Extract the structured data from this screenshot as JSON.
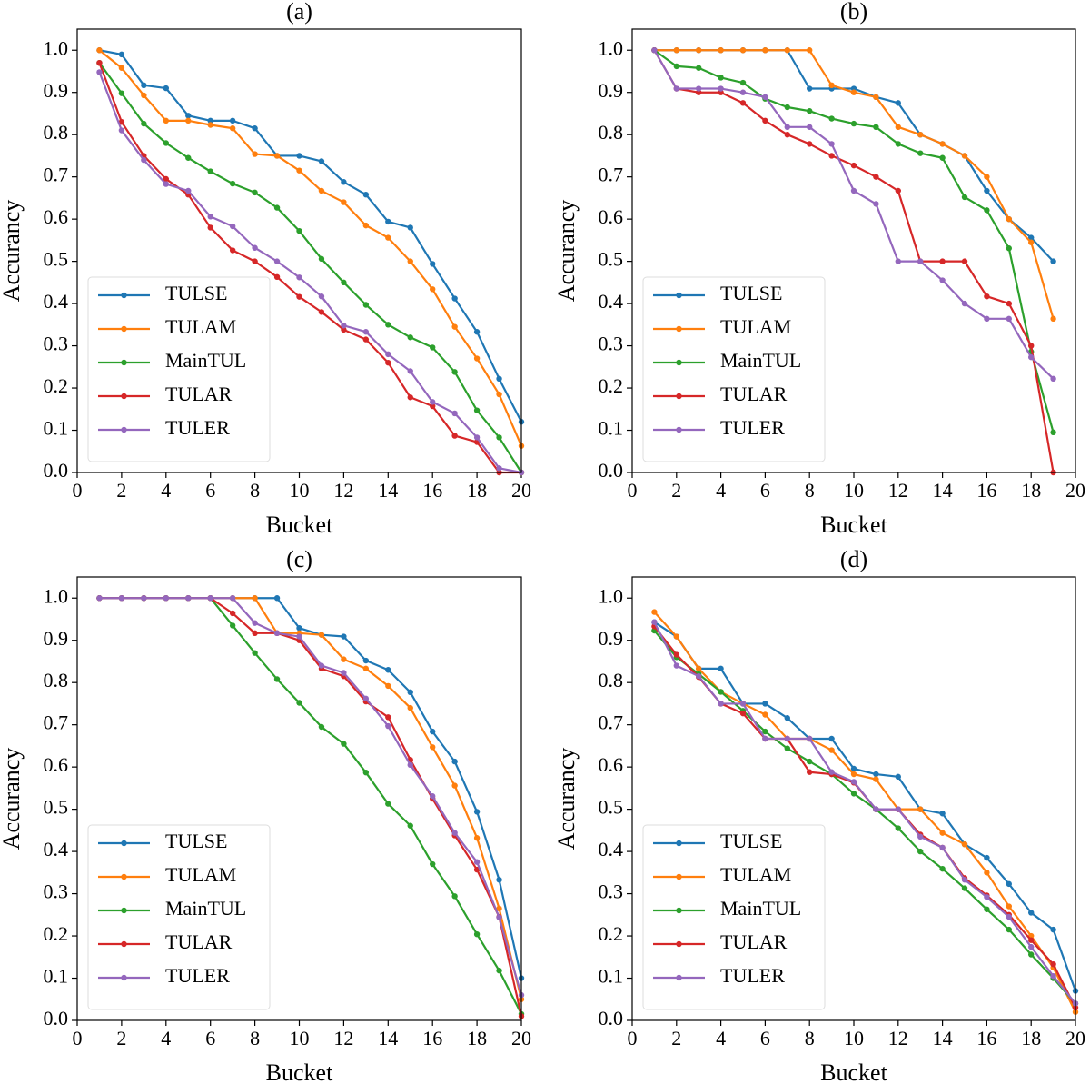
{
  "chart_data": [
    {
      "type": "line",
      "title": "(a)",
      "xlabel": "Bucket",
      "ylabel": "Accurancy",
      "legend": "lower left",
      "x": [
        1,
        2,
        3,
        4,
        5,
        6,
        7,
        8,
        9,
        10,
        11,
        12,
        13,
        14,
        15,
        16,
        17,
        18,
        19,
        20
      ],
      "series": [
        {
          "name": "TULSE",
          "color": "#1f77b4",
          "values": [
            1.0,
            0.99,
            0.917,
            0.91,
            0.845,
            0.833,
            0.833,
            0.815,
            0.75,
            0.75,
            0.737,
            0.688,
            0.658,
            0.594,
            0.58,
            0.494,
            0.412,
            0.333,
            0.222,
            0.12
          ]
        },
        {
          "name": "TULAM",
          "color": "#ff7f0e",
          "values": [
            1.0,
            0.958,
            0.893,
            0.833,
            0.833,
            0.823,
            0.815,
            0.754,
            0.75,
            0.715,
            0.667,
            0.64,
            0.585,
            0.556,
            0.5,
            0.434,
            0.345,
            0.27,
            0.185,
            0.063
          ]
        },
        {
          "name": "MainTUL",
          "color": "#2ca02c",
          "values": [
            0.97,
            0.898,
            0.826,
            0.78,
            0.745,
            0.713,
            0.684,
            0.663,
            0.627,
            0.572,
            0.506,
            0.45,
            0.397,
            0.35,
            0.32,
            0.296,
            0.238,
            0.147,
            0.083,
            0.0
          ]
        },
        {
          "name": "TULAR",
          "color": "#d62728",
          "values": [
            0.97,
            0.83,
            0.75,
            0.695,
            0.658,
            0.58,
            0.526,
            0.5,
            0.463,
            0.416,
            0.38,
            0.338,
            0.315,
            0.26,
            0.178,
            0.157,
            0.087,
            0.072,
            0.0,
            0.0
          ]
        },
        {
          "name": "TULER",
          "color": "#9467bd",
          "values": [
            0.948,
            0.81,
            0.74,
            0.683,
            0.667,
            0.606,
            0.583,
            0.532,
            0.5,
            0.462,
            0.417,
            0.348,
            0.333,
            0.28,
            0.24,
            0.167,
            0.14,
            0.083,
            0.01,
            0.0
          ]
        }
      ],
      "xlim": [
        0,
        20
      ],
      "ylim": [
        0,
        1.05
      ],
      "xticks": [
        0,
        2,
        4,
        6,
        8,
        10,
        12,
        14,
        16,
        18,
        20
      ],
      "yticks": [
        {
          "value": 0,
          "label": "0.0"
        },
        0.1,
        0.2,
        0.3,
        0.4,
        0.5,
        0.6,
        0.7,
        0.8,
        0.9,
        {
          "value": 1,
          "label": "1.0"
        }
      ]
    },
    {
      "type": "line",
      "title": "(b)",
      "xlabel": "Bucket",
      "ylabel": "Accurancy",
      "legend": "lower left",
      "x": [
        1,
        2,
        3,
        4,
        5,
        6,
        7,
        8,
        9,
        10,
        11,
        12,
        13,
        14,
        15,
        16,
        17,
        18,
        19
      ],
      "series": [
        {
          "name": "TULSE",
          "color": "#1f77b4",
          "values": [
            1,
            1,
            1,
            1,
            1,
            1,
            1,
            0.909,
            0.909,
            0.909,
            0.889,
            0.875,
            0.8,
            0.778,
            0.75,
            0.667,
            0.6,
            0.556,
            0.5
          ]
        },
        {
          "name": "TULAM",
          "color": "#ff7f0e",
          "values": [
            1,
            1,
            1,
            1,
            1,
            1,
            1,
            1,
            0.917,
            0.9,
            0.889,
            0.818,
            0.8,
            0.778,
            0.75,
            0.7,
            0.6,
            0.545,
            0.364
          ]
        },
        {
          "name": "MainTUL",
          "color": "#2ca02c",
          "values": [
            1,
            0.962,
            0.958,
            0.935,
            0.923,
            0.885,
            0.865,
            0.856,
            0.838,
            0.826,
            0.818,
            0.778,
            0.756,
            0.745,
            0.652,
            0.621,
            0.531,
            0.286,
            0.095
          ]
        },
        {
          "name": "TULAR",
          "color": "#d62728",
          "values": [
            1,
            0.909,
            0.9,
            0.9,
            0.875,
            0.833,
            0.8,
            0.778,
            0.75,
            0.727,
            0.7,
            0.667,
            0.5,
            0.5,
            0.5,
            0.417,
            0.4,
            0.3,
            0.0
          ]
        },
        {
          "name": "TULER",
          "color": "#9467bd",
          "values": [
            1,
            0.909,
            0.909,
            0.909,
            0.9,
            0.889,
            0.818,
            0.818,
            0.778,
            0.667,
            0.636,
            0.5,
            0.5,
            0.455,
            0.4,
            0.364,
            0.364,
            0.273,
            0.222
          ]
        }
      ],
      "xlim": [
        0,
        20
      ],
      "ylim": [
        0,
        1.05
      ],
      "xticks": [
        0,
        2,
        4,
        6,
        8,
        10,
        12,
        14,
        16,
        18,
        20
      ],
      "yticks": [
        {
          "value": 0,
          "label": "0.0"
        },
        0.1,
        0.2,
        0.3,
        0.4,
        0.5,
        0.6,
        0.7,
        0.8,
        0.9,
        {
          "value": 1,
          "label": "1.0"
        }
      ]
    },
    {
      "type": "line",
      "title": "(c)",
      "xlabel": "Bucket",
      "ylabel": "Accurancy",
      "legend": "lower left",
      "x": [
        1,
        2,
        3,
        4,
        5,
        6,
        7,
        8,
        9,
        10,
        11,
        12,
        13,
        14,
        15,
        16,
        17,
        18,
        19,
        20
      ],
      "series": [
        {
          "name": "TULSE",
          "color": "#1f77b4",
          "values": [
            1,
            1,
            1,
            1,
            1,
            1,
            1,
            1,
            1,
            0.929,
            0.913,
            0.909,
            0.852,
            0.83,
            0.777,
            0.684,
            0.613,
            0.494,
            0.333,
            0.1
          ]
        },
        {
          "name": "TULAM",
          "color": "#ff7f0e",
          "values": [
            1,
            1,
            1,
            1,
            1,
            1,
            1,
            1,
            0.917,
            0.917,
            0.913,
            0.855,
            0.833,
            0.792,
            0.74,
            0.647,
            0.556,
            0.432,
            0.265,
            0.05
          ]
        },
        {
          "name": "MainTUL",
          "color": "#2ca02c",
          "values": [
            1,
            1,
            1,
            1,
            1,
            1,
            0.935,
            0.87,
            0.808,
            0.752,
            0.695,
            0.655,
            0.587,
            0.513,
            0.461,
            0.37,
            0.294,
            0.204,
            0.118,
            0.015
          ]
        },
        {
          "name": "TULAR",
          "color": "#d62728",
          "values": [
            1,
            1,
            1,
            1,
            1,
            1,
            0.964,
            0.917,
            0.917,
            0.9,
            0.833,
            0.815,
            0.755,
            0.718,
            0.617,
            0.525,
            0.438,
            0.357,
            0.245,
            0.01
          ]
        },
        {
          "name": "TULER",
          "color": "#9467bd",
          "values": [
            1,
            1,
            1,
            1,
            1,
            1,
            1,
            0.941,
            0.917,
            0.909,
            0.84,
            0.823,
            0.762,
            0.697,
            0.605,
            0.531,
            0.444,
            0.375,
            0.244,
            0.06
          ]
        }
      ],
      "xlim": [
        0,
        20
      ],
      "ylim": [
        0,
        1.05
      ],
      "xticks": [
        0,
        2,
        4,
        6,
        8,
        10,
        12,
        14,
        16,
        18,
        20
      ],
      "yticks": [
        {
          "value": 0,
          "label": "0.0"
        },
        0.1,
        0.2,
        0.3,
        0.4,
        0.5,
        0.6,
        0.7,
        0.8,
        0.9,
        {
          "value": 1,
          "label": "1.0"
        }
      ]
    },
    {
      "type": "line",
      "title": "(d)",
      "xlabel": "Bucket",
      "ylabel": "Accurancy",
      "legend": "lower left",
      "x": [
        1,
        2,
        3,
        4,
        5,
        6,
        7,
        8,
        9,
        10,
        11,
        12,
        13,
        14,
        15,
        16,
        17,
        18,
        19,
        20
      ],
      "series": [
        {
          "name": "TULSE",
          "color": "#1f77b4",
          "values": [
            0.943,
            0.909,
            0.833,
            0.833,
            0.75,
            0.75,
            0.716,
            0.667,
            0.667,
            0.596,
            0.583,
            0.577,
            0.5,
            0.49,
            0.417,
            0.385,
            0.323,
            0.255,
            0.215,
            0.07
          ]
        },
        {
          "name": "TULAM",
          "color": "#ff7f0e",
          "values": [
            0.967,
            0.909,
            0.833,
            0.778,
            0.75,
            0.724,
            0.667,
            0.667,
            0.64,
            0.583,
            0.571,
            0.5,
            0.5,
            0.444,
            0.417,
            0.35,
            0.27,
            0.2,
            0.125,
            0.02
          ]
        },
        {
          "name": "MainTUL",
          "color": "#2ca02c",
          "values": [
            0.923,
            0.86,
            0.82,
            0.778,
            0.733,
            0.684,
            0.644,
            0.613,
            0.583,
            0.537,
            0.5,
            0.455,
            0.4,
            0.359,
            0.313,
            0.263,
            0.215,
            0.156,
            0.1,
            0.04
          ]
        },
        {
          "name": "TULAR",
          "color": "#d62728",
          "values": [
            0.933,
            0.866,
            0.813,
            0.75,
            0.727,
            0.667,
            0.667,
            0.588,
            0.583,
            0.563,
            0.5,
            0.5,
            0.44,
            0.409,
            0.337,
            0.296,
            0.25,
            0.19,
            0.133,
            0.03
          ]
        },
        {
          "name": "TULER",
          "color": "#9467bd",
          "values": [
            0.943,
            0.84,
            0.815,
            0.75,
            0.75,
            0.667,
            0.667,
            0.667,
            0.588,
            0.565,
            0.5,
            0.5,
            0.435,
            0.409,
            0.333,
            0.292,
            0.245,
            0.174,
            0.105,
            0.04
          ]
        }
      ],
      "xlim": [
        0,
        20
      ],
      "ylim": [
        0,
        1.05
      ],
      "xticks": [
        0,
        2,
        4,
        6,
        8,
        10,
        12,
        14,
        16,
        18,
        20
      ],
      "yticks": [
        {
          "value": 0,
          "label": "0.0"
        },
        0.1,
        0.2,
        0.3,
        0.4,
        0.5,
        0.6,
        0.7,
        0.8,
        0.9,
        {
          "value": 1,
          "label": "1.0"
        }
      ]
    }
  ]
}
